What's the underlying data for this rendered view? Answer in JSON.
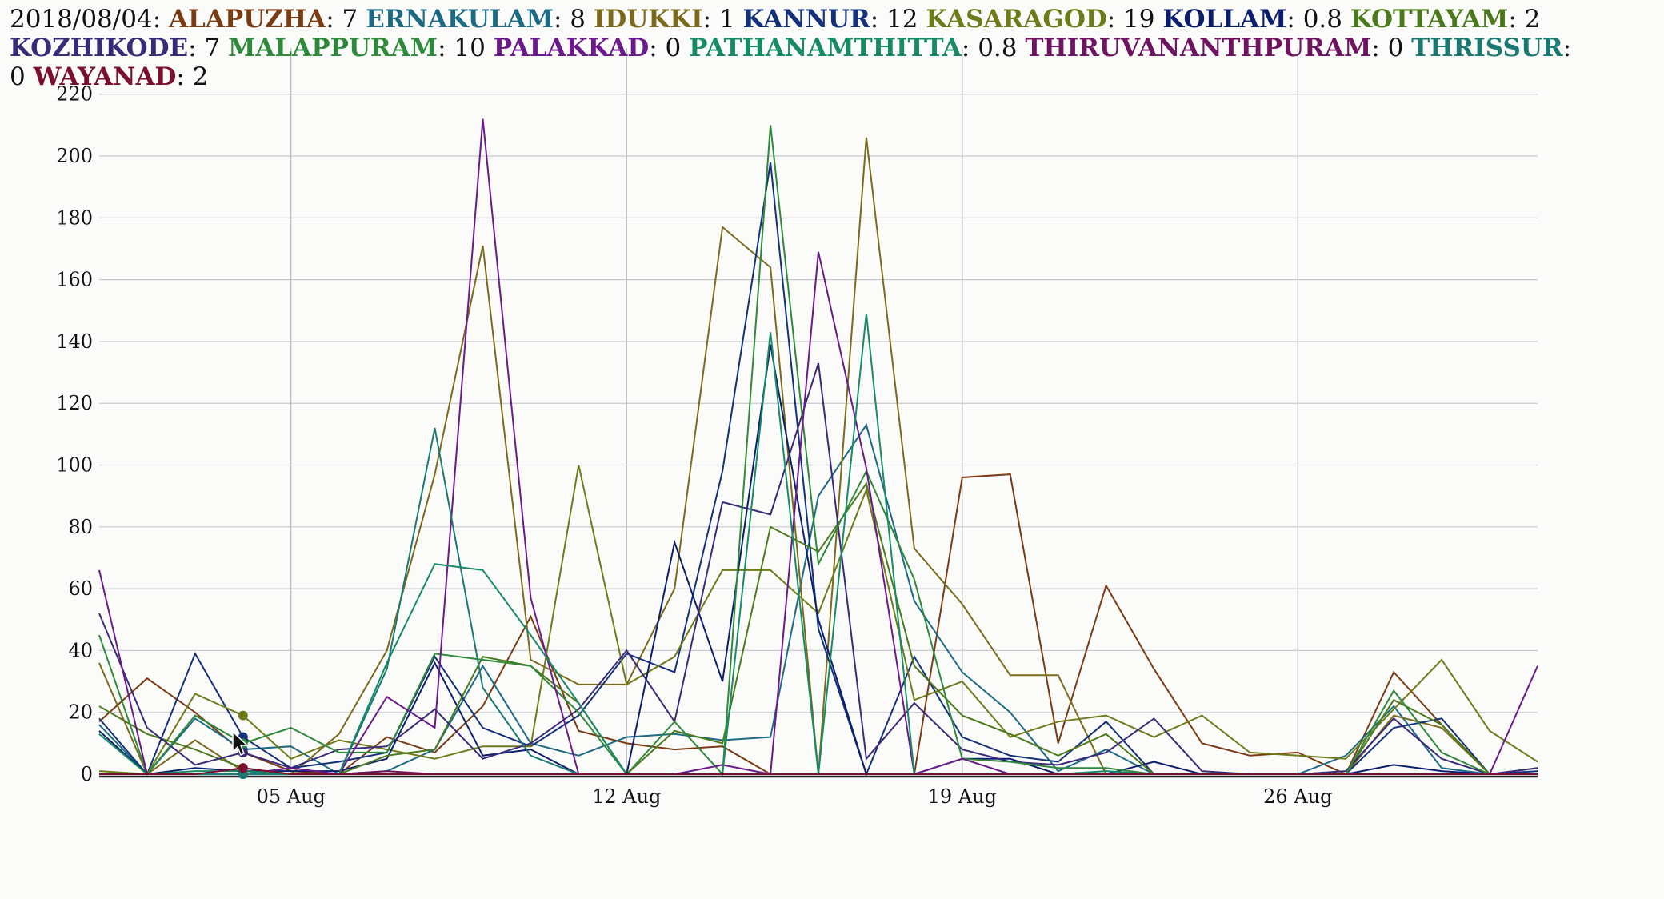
{
  "legend": {
    "date_label": "2018/08/04"
  },
  "chart_data": {
    "type": "line",
    "x": [
      "2018-08-01",
      "2018-08-02",
      "2018-08-03",
      "2018-08-04",
      "2018-08-05",
      "2018-08-06",
      "2018-08-07",
      "2018-08-08",
      "2018-08-09",
      "2018-08-10",
      "2018-08-11",
      "2018-08-12",
      "2018-08-13",
      "2018-08-14",
      "2018-08-15",
      "2018-08-16",
      "2018-08-17",
      "2018-08-18",
      "2018-08-19",
      "2018-08-20",
      "2018-08-21",
      "2018-08-22",
      "2018-08-23",
      "2018-08-24",
      "2018-08-25",
      "2018-08-26",
      "2018-08-27",
      "2018-08-28",
      "2018-08-29",
      "2018-08-30",
      "2018-08-31"
    ],
    "x_tick_labels": [
      "05 Aug",
      "12 Aug",
      "19 Aug",
      "26 Aug"
    ],
    "y_ticks": [
      0,
      20,
      40,
      60,
      80,
      100,
      120,
      140,
      160,
      180,
      200,
      220
    ],
    "ylim": [
      0,
      222
    ],
    "grid": true,
    "legend_position": "top",
    "highlight_date_index": 3,
    "series": [
      {
        "name": "ALAPUZHA",
        "color": "#7a3a12",
        "value_at_highlight": "7",
        "values": [
          17,
          31,
          20,
          7,
          1,
          0,
          12,
          7,
          22,
          51,
          14,
          10,
          8,
          9,
          0,
          0,
          0,
          0,
          96,
          97,
          10,
          61,
          34,
          10,
          6,
          7,
          0,
          33,
          16,
          0,
          0
        ]
      },
      {
        "name": "ERNAKULAM",
        "color": "#1c6a84",
        "value_at_highlight": "8",
        "values": [
          16,
          0,
          18,
          8,
          9,
          0,
          1,
          8,
          35,
          10,
          6,
          12,
          13,
          11,
          12,
          90,
          113,
          56,
          33,
          20,
          1,
          8,
          0,
          0,
          0,
          0,
          6,
          22,
          2,
          0,
          0
        ]
      },
      {
        "name": "IDUKKI",
        "color": "#7a6a1c",
        "value_at_highlight": "1",
        "values": [
          36,
          0,
          11,
          1,
          0,
          13,
          40,
          97,
          171,
          37,
          29,
          29,
          60,
          177,
          164,
          0,
          206,
          73,
          55,
          32,
          32,
          0,
          0,
          0,
          0,
          0,
          0,
          19,
          15,
          0,
          2
        ]
      },
      {
        "name": "KANNUR",
        "color": "#13307a",
        "value_at_highlight": "12",
        "values": [
          18,
          0,
          39,
          12,
          2,
          4,
          7,
          38,
          15,
          9,
          19,
          39,
          33,
          98,
          198,
          47,
          0,
          38,
          12,
          6,
          4,
          17,
          0,
          0,
          0,
          0,
          0,
          15,
          18,
          0,
          1
        ]
      },
      {
        "name": "KASARAGOD",
        "color": "#6f7a18",
        "value_at_highlight": "19",
        "values": [
          1,
          0,
          26,
          19,
          5,
          11,
          8,
          5,
          9,
          9,
          100,
          29,
          38,
          66,
          66,
          52,
          92,
          24,
          30,
          12,
          17,
          19,
          12,
          19,
          7,
          6,
          5,
          21,
          37,
          14,
          4
        ]
      },
      {
        "name": "KOLLAM",
        "color": "#0b1e6e",
        "value_at_highlight": "0.8",
        "values": [
          14,
          0,
          2,
          1,
          1,
          1,
          5,
          36,
          6,
          8,
          0,
          0,
          75,
          30,
          139,
          50,
          0,
          0,
          5,
          5,
          0,
          0,
          4,
          0,
          0,
          0,
          0,
          3,
          1,
          0,
          0
        ]
      },
      {
        "name": "KOTTAYAM",
        "color": "#4b7a1c",
        "value_at_highlight": "2",
        "values": [
          22,
          13,
          8,
          2,
          0,
          0,
          6,
          8,
          38,
          35,
          23,
          0,
          14,
          10,
          80,
          72,
          94,
          35,
          19,
          13,
          6,
          13,
          0,
          0,
          0,
          0,
          0,
          24,
          16,
          0,
          0
        ]
      },
      {
        "name": "KOZHIKODE",
        "color": "#3a2a7a",
        "value_at_highlight": "7",
        "values": [
          52,
          15,
          3,
          7,
          2,
          8,
          9,
          21,
          5,
          10,
          21,
          40,
          17,
          88,
          84,
          133,
          5,
          23,
          8,
          4,
          3,
          7,
          18,
          1,
          0,
          0,
          1,
          18,
          5,
          0,
          2
        ]
      },
      {
        "name": "MALAPPURAM",
        "color": "#2e8a3a",
        "value_at_highlight": "10",
        "values": [
          45,
          0,
          19,
          10,
          15,
          7,
          7,
          39,
          37,
          35,
          20,
          0,
          17,
          0,
          210,
          68,
          98,
          63,
          5,
          4,
          2,
          2,
          0,
          0,
          0,
          0,
          0,
          27,
          7,
          0,
          0
        ]
      },
      {
        "name": "PALAKKAD",
        "color": "#6a1a8a",
        "value_at_highlight": "0",
        "values": [
          66,
          0,
          0,
          0,
          2,
          0,
          25,
          15,
          212,
          57,
          0,
          0,
          0,
          3,
          0,
          169,
          99,
          0,
          5,
          0,
          0,
          0,
          0,
          0,
          0,
          0,
          0,
          0,
          0,
          0,
          35
        ]
      },
      {
        "name": "PATHANAMTHITTA",
        "color": "#178a66",
        "value_at_highlight": "0.8",
        "values": [
          13,
          0,
          1,
          1,
          0,
          0,
          36,
          68,
          66,
          45,
          23,
          0,
          0,
          0,
          143,
          0,
          149,
          0,
          0,
          0,
          0,
          1,
          0,
          0,
          0,
          0,
          0,
          0,
          0,
          0,
          0
        ]
      },
      {
        "name": "THIRUVANANTHPURAM",
        "color": "#6e1460",
        "value_at_highlight": "0",
        "values": [
          0,
          0,
          0,
          0,
          0,
          0,
          1,
          0,
          0,
          0,
          0,
          0,
          0,
          0,
          0,
          0,
          0,
          0,
          0,
          0,
          0,
          0,
          0,
          0,
          0,
          0,
          0,
          0,
          0,
          0,
          0
        ]
      },
      {
        "name": "THRISSUR",
        "color": "#1a7a72",
        "value_at_highlight": "0",
        "values": [
          0,
          0,
          0,
          0,
          0,
          0,
          34,
          112,
          28,
          6,
          0,
          0,
          0,
          0,
          0,
          0,
          0,
          0,
          0,
          0,
          0,
          0,
          0,
          0,
          0,
          0,
          0,
          0,
          0,
          0,
          0
        ]
      },
      {
        "name": "WAYANAD",
        "color": "#7a0f2e",
        "value_at_highlight": "2",
        "values": [
          0,
          0,
          0,
          2,
          0,
          0,
          0,
          0,
          0,
          0,
          0,
          0,
          0,
          0,
          0,
          0,
          0,
          0,
          0,
          0,
          0,
          0,
          0,
          0,
          0,
          0,
          0,
          0,
          0,
          0,
          0
        ]
      }
    ]
  }
}
